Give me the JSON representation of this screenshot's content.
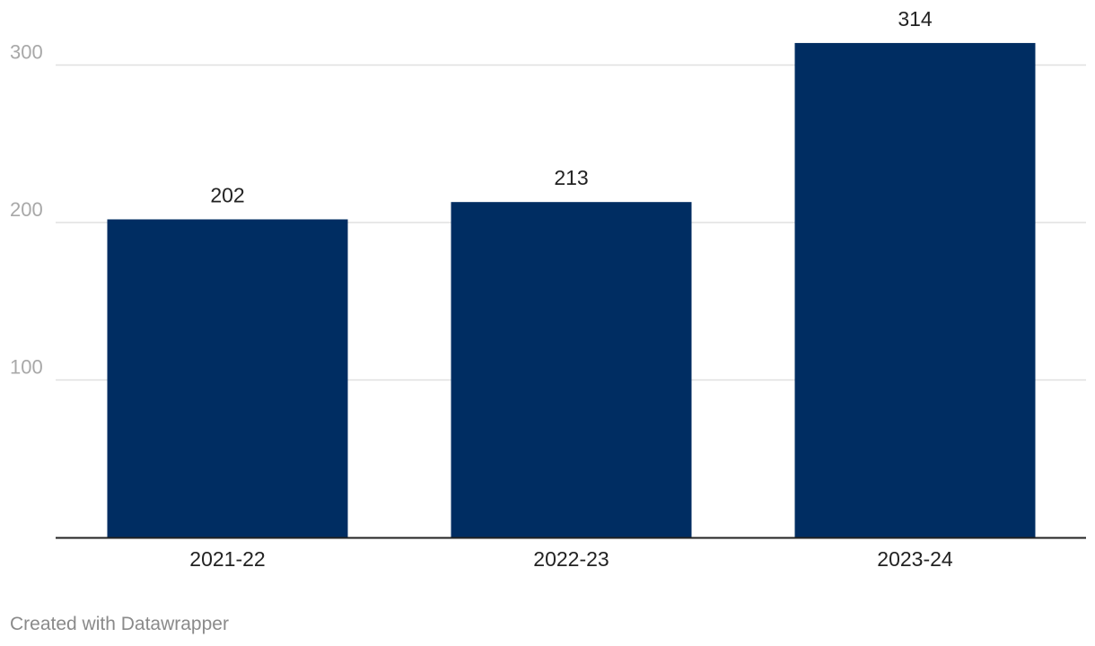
{
  "chart_data": {
    "type": "bar",
    "categories": [
      "2021-22",
      "2022-23",
      "2023-24"
    ],
    "values": [
      202,
      213,
      314
    ],
    "title": "",
    "xlabel": "",
    "ylabel": "",
    "ylim": [
      0,
      314
    ],
    "yticks": [
      100,
      200,
      300
    ],
    "grid": true,
    "data_labels": true,
    "colors": {
      "bar": "#002d62",
      "grid": "#e0e0e0",
      "axis": "#222222",
      "tick_label": "#a8a8a8",
      "category_label": "#222222",
      "value_label": "#222222"
    }
  },
  "footer": {
    "credit": "Created with Datawrapper"
  }
}
